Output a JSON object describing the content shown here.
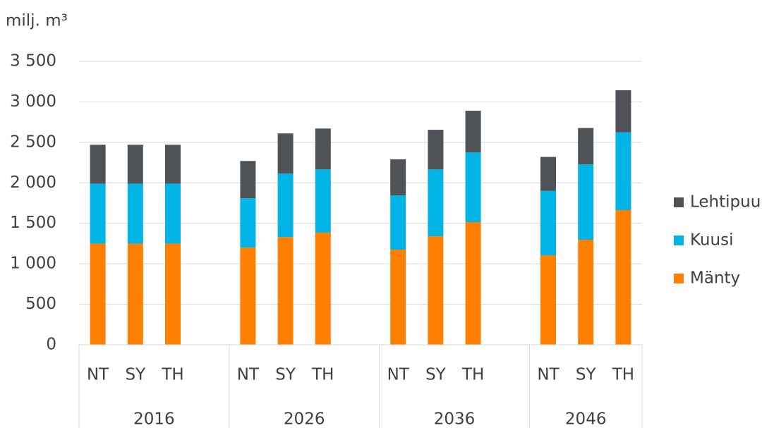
{
  "chart_data": {
    "type": "stacked_bar",
    "y_axis_label": "milj. m³",
    "groups": [
      "2016",
      "2026",
      "2036",
      "2046"
    ],
    "categories": [
      "NT",
      "SY",
      "TH",
      "NT",
      "SY",
      "TH",
      "NT",
      "SY",
      "TH",
      "NT",
      "SY",
      "TH"
    ],
    "series": [
      {
        "name": "Mänty",
        "color": "#ff8000",
        "values": [
          1250,
          1250,
          1250,
          1200,
          1330,
          1385,
          1175,
          1340,
          1515,
          1105,
          1297,
          1663
        ]
      },
      {
        "name": "Kuusi",
        "color": "#00b4e6",
        "values": [
          740,
          740,
          740,
          610,
          785,
          780,
          670,
          825,
          860,
          795,
          930,
          960
        ]
      },
      {
        "name": "Lehtipuu",
        "color": "#4f5358",
        "values": [
          480,
          480,
          480,
          460,
          495,
          505,
          445,
          490,
          515,
          420,
          450,
          520
        ]
      }
    ],
    "ylim": [
      0,
      3500
    ],
    "yticks": [
      0,
      500,
      {
        "value": 1000,
        "label": "1 000"
      },
      {
        "value": 1500,
        "label": "1 500"
      },
      {
        "value": 2000,
        "label": "2 000"
      },
      {
        "value": 2500,
        "label": "2 500"
      },
      {
        "value": 3000,
        "label": "3 000"
      },
      {
        "value": 3500,
        "label": "3 500"
      }
    ],
    "grid": true,
    "legend": "right"
  }
}
